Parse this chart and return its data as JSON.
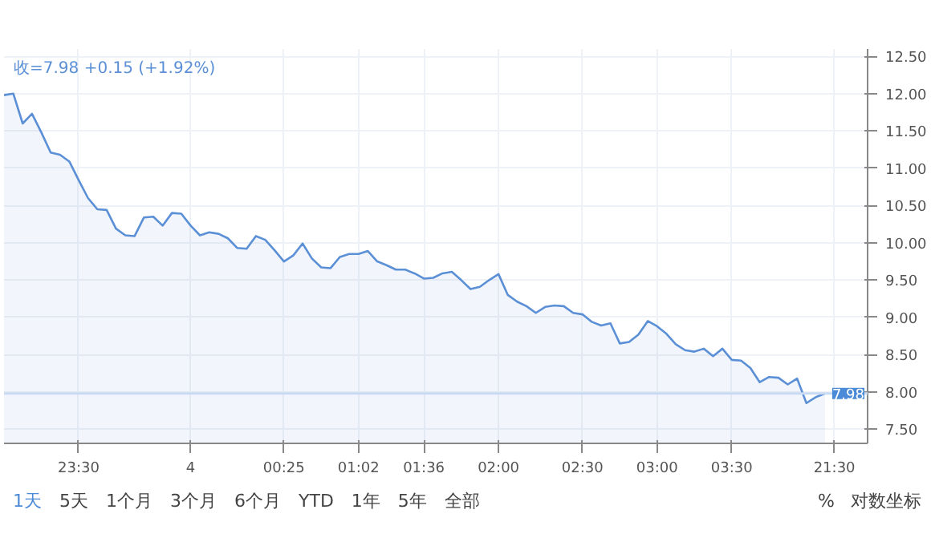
{
  "chart_data": {
    "type": "area",
    "categories": [
      null,
      null,
      null,
      null,
      null,
      null,
      null,
      null,
      "23:30",
      null,
      null,
      null,
      null,
      null,
      null,
      null,
      null,
      null,
      null,
      null,
      "4",
      null,
      null,
      null,
      null,
      null,
      null,
      null,
      null,
      null,
      "00:25",
      null,
      null,
      null,
      null,
      null,
      null,
      null,
      "01:02",
      null,
      null,
      null,
      null,
      null,
      null,
      "01:36",
      null,
      null,
      null,
      null,
      null,
      null,
      null,
      "02:00",
      null,
      null,
      null,
      null,
      null,
      null,
      null,
      null,
      "02:30",
      null,
      null,
      null,
      null,
      null,
      null,
      null,
      "03:00",
      null,
      null,
      null,
      null,
      null,
      null,
      null,
      "03:30",
      null,
      null,
      null,
      null,
      null,
      null,
      null,
      null,
      null,
      null,
      "21:30"
    ],
    "series": [
      {
        "color": "#5b8fd6",
        "values": [
          11.98,
          12.0,
          11.6,
          11.73,
          11.48,
          11.21,
          11.18,
          11.09,
          10.84,
          10.6,
          10.45,
          10.44,
          10.19,
          10.1,
          10.09,
          10.34,
          10.35,
          10.23,
          10.4,
          10.39,
          10.23,
          10.1,
          10.14,
          10.12,
          10.06,
          9.93,
          9.92,
          10.09,
          10.04,
          9.9,
          9.75,
          9.83,
          9.99,
          9.79,
          9.67,
          9.66,
          9.81,
          9.85,
          9.85,
          9.89,
          9.75,
          9.7,
          9.64,
          9.64,
          9.59,
          9.52,
          9.53,
          9.59,
          9.61,
          9.5,
          9.38,
          9.41,
          9.5,
          9.58,
          9.3,
          9.21,
          9.15,
          9.06,
          9.14,
          9.16,
          9.15,
          9.06,
          9.04,
          8.94,
          8.89,
          8.92,
          8.65,
          8.67,
          8.77,
          8.95,
          8.88,
          8.78,
          8.64,
          8.56,
          8.54,
          8.58,
          8.48,
          8.58,
          8.43,
          8.42,
          8.32,
          8.13,
          8.2,
          8.19,
          8.1,
          8.18,
          7.85,
          7.93,
          7.98,
          null
        ]
      }
    ],
    "ylim": [
      7.31,
      12.6
    ],
    "yticks": [
      {
        "value": 7.5,
        "label": "7.50"
      },
      {
        "value": 8,
        "label": "8.00"
      },
      {
        "value": 8.5,
        "label": "8.50"
      },
      {
        "value": 9,
        "label": "9.00"
      },
      {
        "value": 9.5,
        "label": "9.50"
      },
      {
        "value": 10,
        "label": "10.00"
      },
      {
        "value": 10.5,
        "label": "10.50"
      },
      {
        "value": 11,
        "label": "11.00"
      },
      {
        "value": 11.5,
        "label": "11.50"
      },
      {
        "value": 12,
        "label": "12.00"
      },
      {
        "value": 12.5,
        "label": "12.50"
      }
    ],
    "ref_lines": [
      {
        "axis": "y",
        "value": 7.98,
        "label": "7.98",
        "color": "#c9daf3"
      }
    ],
    "grid": true,
    "annotations": [
      "收=7.98  +0.15 (+1.92%)",
      "1天",
      "5天",
      "1个月",
      "3个月",
      "6个月",
      "YTD",
      "1年",
      "5年",
      "全部",
      "%",
      "对数坐标"
    ]
  }
}
